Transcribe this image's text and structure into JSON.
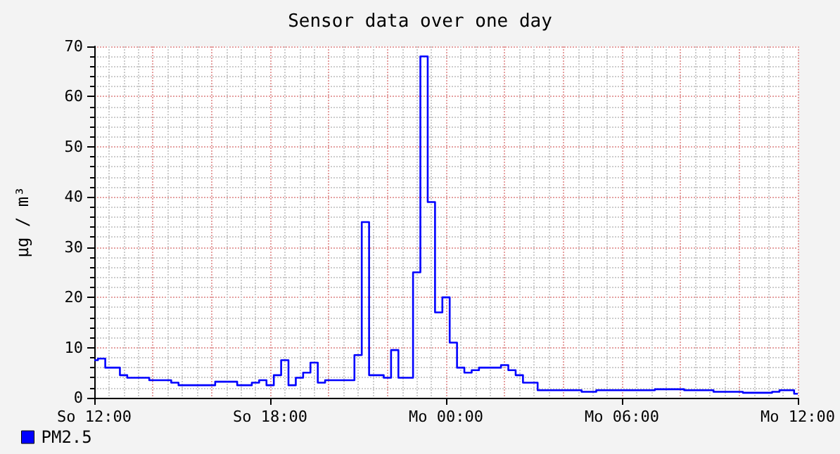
{
  "chart_data": {
    "type": "step",
    "title": "Sensor data over one day",
    "ylabel": "µg / m³",
    "categories": [
      "So 12:00",
      null,
      null,
      null,
      null,
      null,
      null,
      null,
      null,
      null,
      null,
      null,
      null,
      null,
      null,
      null,
      null,
      null,
      null,
      null,
      null,
      null,
      null,
      null,
      "So 18:00",
      null,
      null,
      null,
      null,
      null,
      null,
      null,
      null,
      null,
      null,
      null,
      null,
      null,
      null,
      null,
      null,
      null,
      null,
      null,
      null,
      null,
      null,
      null,
      "Mo 00:00",
      null,
      null,
      null,
      null,
      null,
      null,
      null,
      null,
      null,
      null,
      null,
      null,
      null,
      null,
      null,
      null,
      null,
      null,
      null,
      null,
      null,
      null,
      null,
      "Mo 06:00",
      null,
      null,
      null,
      null,
      null,
      null,
      null,
      null,
      null,
      null,
      null,
      null,
      null,
      null,
      null,
      null,
      null,
      null,
      null,
      null,
      null,
      null,
      null,
      "Mo 12:00"
    ],
    "ylim": [
      0,
      70
    ],
    "yticks": [
      0,
      10,
      20,
      30,
      40,
      50,
      60,
      70
    ],
    "grid": true,
    "legend": "bottom left",
    "marker": "none",
    "line_style": "solid",
    "series": [
      {
        "name": "PM2.5",
        "color": "#0000ff",
        "values": [
          7.5,
          7.8,
          6,
          6,
          4.5,
          4,
          4,
          4,
          3.5,
          3.5,
          3.5,
          3,
          2.5,
          2.5,
          2.5,
          2.5,
          2.5,
          3.2,
          3.2,
          3.2,
          2.5,
          2.5,
          3,
          3.5,
          2.5,
          4.5,
          7.5,
          2.5,
          4,
          5,
          7,
          3,
          3.5,
          3.5,
          3.5,
          3.5,
          8.5,
          35,
          4.5,
          4.5,
          4,
          9.5,
          4,
          4,
          25,
          68,
          39,
          17,
          20,
          11,
          6,
          5,
          5.5,
          6,
          6,
          6,
          6.5,
          5.5,
          4.5,
          3,
          3,
          1.5,
          1.5,
          1.5,
          1.5,
          1.5,
          1.5,
          1.2,
          1.2,
          1.5,
          1.5,
          1.5,
          1.5,
          1.5,
          1.5,
          1.5,
          1.5,
          1.7,
          1.7,
          1.7,
          1.7,
          1.5,
          1.5,
          1.5,
          1.5,
          1.2,
          1.2,
          1.2,
          1.2,
          1,
          1,
          1,
          1,
          1.2,
          1.5,
          1.5,
          0.8
        ]
      }
    ]
  }
}
